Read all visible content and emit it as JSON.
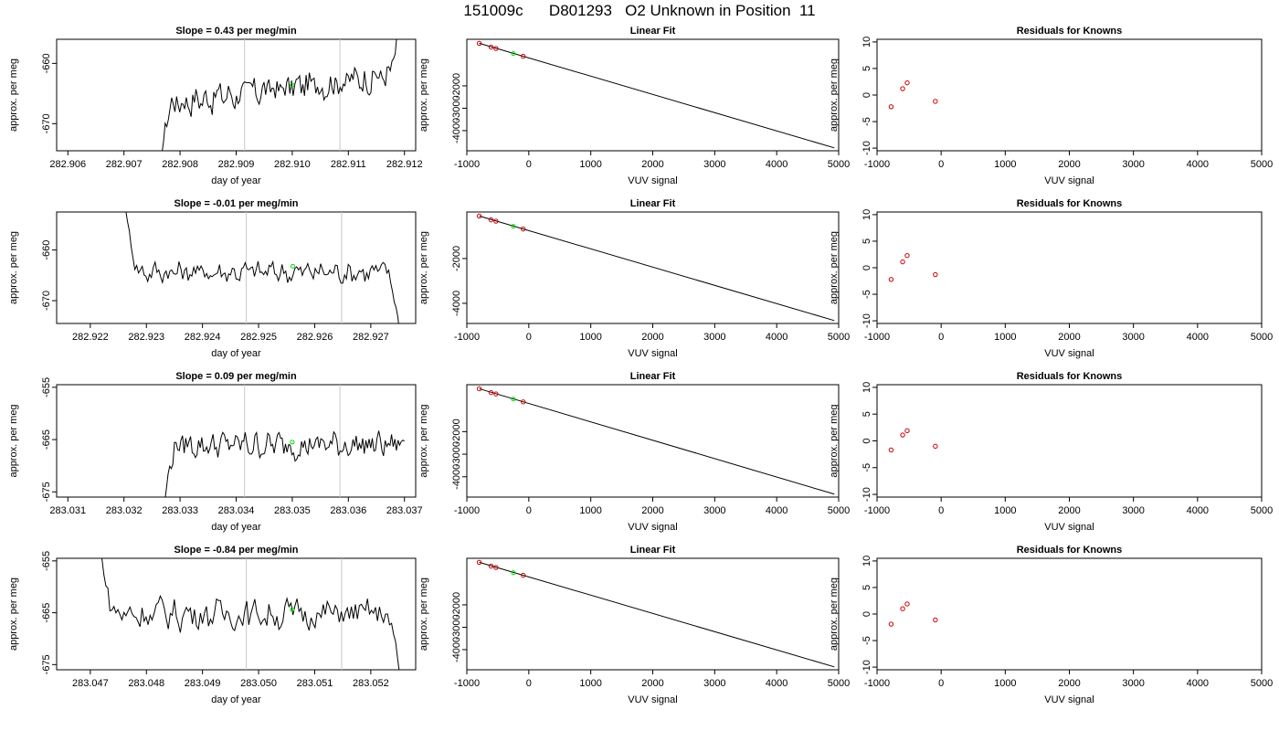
{
  "title": "151009c      D801293   O2 Unknown in Position  11",
  "style": {
    "line_color": "#000000",
    "known_color": "#cc0000",
    "unknown_color": "#00dd00",
    "guide_color": "#c8c8c8"
  },
  "chart_data": [
    {
      "row": 1,
      "panels": [
        {
          "type": "line",
          "title": "Slope =  0.43  per meg/min",
          "xlabel": "day of year",
          "ylabel": "approx. per meg",
          "xlim": [
            282.9058,
            282.9122
          ],
          "ylim": [
            -674.5,
            -656.0
          ],
          "x_ticks": [
            "282.906",
            "282.907",
            "282.908",
            "282.909",
            "282.910",
            "282.911",
            "282.912"
          ],
          "y_ticks": [
            "-660",
            "-670"
          ],
          "vlines": [
            282.90915,
            282.91085
          ],
          "start": 282.90762,
          "end": 282.91195,
          "level": -664.2,
          "noise": 1.6,
          "drift": 2.5,
          "start_value": -680,
          "end_value": -650,
          "center_point": [
            282.91,
            -663.6
          ],
          "series": [
            {
              "values": []
            }
          ]
        },
        {
          "type": "scatter",
          "title": "Linear Fit",
          "xlabel": "VUV signal",
          "ylabel": "approx. per meg",
          "xlim": [
            -1000,
            5000
          ],
          "ylim": [
            -4900,
            80
          ],
          "x_ticks": [
            "-1000",
            "0",
            "1000",
            "2000",
            "3000",
            "4000",
            "5000"
          ],
          "y_ticks": [
            "-2000",
            "-3000",
            "-4000"
          ],
          "fit_line": [
            [
              -800,
              -100
            ],
            [
              4930,
              -4770
            ]
          ],
          "points": [
            [
              -800,
              -100
            ],
            [
              -610,
              -270
            ],
            [
              -530,
              -330
            ],
            [
              -90,
              -680
            ]
          ],
          "unknown_point": [
            -250,
            -560
          ]
        },
        {
          "type": "scatter",
          "title": "Residuals for Knowns",
          "xlabel": "VUV signal",
          "ylabel": "approx. per meg",
          "xlim": [
            -1000,
            5000
          ],
          "ylim": [
            -10.5,
            10.5
          ],
          "x_ticks": [
            "-1000",
            "0",
            "1000",
            "2000",
            "3000",
            "4000",
            "5000"
          ],
          "y_ticks": [
            "10",
            "5",
            "0",
            "-5",
            "-10"
          ],
          "points": [
            [
              -780,
              -2.2
            ],
            [
              -600,
              1.2
            ],
            [
              -530,
              2.3
            ],
            [
              -90,
              -1.2
            ]
          ]
        }
      ]
    },
    {
      "row": 2,
      "panels": [
        {
          "type": "line",
          "title": "Slope =  -0.01  per meg/min",
          "xlabel": "day of year",
          "ylabel": "approx. per meg",
          "xlim": [
            282.9214,
            282.9278
          ],
          "ylim": [
            -674.5,
            -652.5
          ],
          "x_ticks": [
            "282.922",
            "282.923",
            "282.924",
            "282.925",
            "282.926",
            "282.927"
          ],
          "y_ticks": [
            "-660",
            "-670"
          ],
          "vlines": [
            282.92478,
            282.92648
          ],
          "start": 282.92263,
          "end": 282.92755,
          "level": -664.3,
          "noise": 1.4,
          "drift": 0,
          "start_value": -652,
          "end_value": -680,
          "center_point": [
            282.92561,
            -663.2
          ],
          "series": [
            {
              "values": []
            }
          ]
        },
        {
          "type": "scatter",
          "title": "Linear Fit",
          "xlabel": "VUV signal",
          "ylabel": "approx. per meg",
          "xlim": [
            -1000,
            5000
          ],
          "ylim": [
            -4900,
            80
          ],
          "x_ticks": [
            "-1000",
            "0",
            "1000",
            "2000",
            "3000",
            "4000",
            "5000"
          ],
          "y_ticks": [
            "-2000",
            "-4000"
          ],
          "fit_line": [
            [
              -800,
              -100
            ],
            [
              4930,
              -4770
            ]
          ],
          "points": [
            [
              -800,
              -100
            ],
            [
              -610,
              -270
            ],
            [
              -530,
              -330
            ],
            [
              -90,
              -680
            ]
          ],
          "unknown_point": [
            -250,
            -560
          ]
        },
        {
          "type": "scatter",
          "title": "Residuals for Knowns",
          "xlabel": "VUV signal",
          "ylabel": "approx. per meg",
          "xlim": [
            -1000,
            5000
          ],
          "ylim": [
            -10.5,
            10.5
          ],
          "x_ticks": [
            "-1000",
            "0",
            "1000",
            "2000",
            "3000",
            "4000",
            "5000"
          ],
          "y_ticks": [
            "10",
            "5",
            "0",
            "-5",
            "-10"
          ],
          "points": [
            [
              -780,
              -2.2
            ],
            [
              -600,
              1.1
            ],
            [
              -530,
              2.3
            ],
            [
              -90,
              -1.3
            ]
          ]
        }
      ]
    },
    {
      "row": 3,
      "panels": [
        {
          "type": "line",
          "title": "Slope =  0.09  per meg/min",
          "xlabel": "day of year",
          "ylabel": "approx. per meg",
          "xlim": [
            283.0308,
            283.0372
          ],
          "ylim": [
            -676.0,
            -654.5
          ],
          "x_ticks": [
            "283.031",
            "283.032",
            "283.033",
            "283.034",
            "283.035",
            "283.036",
            "283.037"
          ],
          "y_ticks": [
            "-655",
            "-665",
            "-675"
          ],
          "vlines": [
            283.03415,
            283.03585
          ],
          "start": 283.0327,
          "end": 283.037,
          "level": -666.0,
          "noise": 1.6,
          "drift": 0,
          "start_value": -680,
          "end_value": -665.3,
          "center_point": [
            283.035,
            -665.5
          ],
          "series": [
            {
              "values": []
            }
          ]
        },
        {
          "type": "scatter",
          "title": "Linear Fit",
          "xlabel": "VUV signal",
          "ylabel": "approx. per meg",
          "xlim": [
            -1000,
            5000
          ],
          "ylim": [
            -4900,
            80
          ],
          "x_ticks": [
            "-1000",
            "0",
            "1000",
            "2000",
            "3000",
            "4000",
            "5000"
          ],
          "y_ticks": [
            "-2000",
            "-3000",
            "-4000"
          ],
          "fit_line": [
            [
              -800,
              -100
            ],
            [
              4930,
              -4770
            ]
          ],
          "points": [
            [
              -800,
              -100
            ],
            [
              -610,
              -270
            ],
            [
              -530,
              -330
            ],
            [
              -90,
              -680
            ]
          ],
          "unknown_point": [
            -250,
            -560
          ]
        },
        {
          "type": "scatter",
          "title": "Residuals for Knowns",
          "xlabel": "VUV signal",
          "ylabel": "approx. per meg",
          "xlim": [
            -1000,
            5000
          ],
          "ylim": [
            -10.5,
            10.5
          ],
          "x_ticks": [
            "-1000",
            "0",
            "1000",
            "2000",
            "3000",
            "4000",
            "5000"
          ],
          "y_ticks": [
            "10",
            "5",
            "0",
            "-5",
            "-10"
          ],
          "points": [
            [
              -780,
              -1.7
            ],
            [
              -600,
              1.1
            ],
            [
              -530,
              1.9
            ],
            [
              -90,
              -1.0
            ]
          ]
        }
      ]
    },
    {
      "row": 4,
      "panels": [
        {
          "type": "line",
          "title": "Slope =  -0.84  per meg/min",
          "xlabel": "day of year",
          "ylabel": "approx. per meg",
          "xlim": [
            283.0464,
            283.0528
          ],
          "ylim": [
            -676.0,
            -654.5
          ],
          "x_ticks": [
            "283.047",
            "283.048",
            "283.049",
            "283.050",
            "283.051",
            "283.052"
          ],
          "y_ticks": [
            "-655",
            "-665",
            "-675"
          ],
          "vlines": [
            283.04978,
            283.05148
          ],
          "start": 283.04717,
          "end": 283.05255,
          "level": -665.2,
          "noise": 1.9,
          "drift": 0,
          "start_value": -652,
          "end_value": -680,
          "center_point": [
            283.0506,
            -664.4
          ],
          "series": [
            {
              "values": []
            }
          ]
        },
        {
          "type": "scatter",
          "title": "Linear Fit",
          "xlabel": "VUV signal",
          "ylabel": "approx. per meg",
          "xlim": [
            -1000,
            5000
          ],
          "ylim": [
            -4900,
            80
          ],
          "x_ticks": [
            "-1000",
            "0",
            "1000",
            "2000",
            "3000",
            "4000",
            "5000"
          ],
          "y_ticks": [
            "-2000",
            "-3000",
            "-4000"
          ],
          "fit_line": [
            [
              -800,
              -100
            ],
            [
              4930,
              -4770
            ]
          ],
          "points": [
            [
              -800,
              -100
            ],
            [
              -610,
              -270
            ],
            [
              -530,
              -330
            ],
            [
              -90,
              -680
            ]
          ],
          "unknown_point": [
            -250,
            -560
          ]
        },
        {
          "type": "scatter",
          "title": "Residuals for Knowns",
          "xlabel": "VUV signal",
          "ylabel": "approx. per meg",
          "xlim": [
            -1000,
            5000
          ],
          "ylim": [
            -10.5,
            10.5
          ],
          "x_ticks": [
            "-1000",
            "0",
            "1000",
            "2000",
            "3000",
            "4000",
            "5000"
          ],
          "y_ticks": [
            "10",
            "5",
            "0",
            "-5",
            "-10"
          ],
          "points": [
            [
              -780,
              -1.9
            ],
            [
              -600,
              1.0
            ],
            [
              -530,
              1.9
            ],
            [
              -90,
              -1.1
            ]
          ]
        }
      ]
    }
  ]
}
